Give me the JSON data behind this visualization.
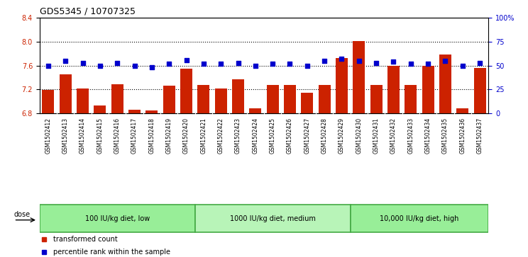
{
  "title": "GDS5345 / 10707325",
  "samples": [
    "GSM1502412",
    "GSM1502413",
    "GSM1502414",
    "GSM1502415",
    "GSM1502416",
    "GSM1502417",
    "GSM1502418",
    "GSM1502419",
    "GSM1502420",
    "GSM1502421",
    "GSM1502422",
    "GSM1502423",
    "GSM1502424",
    "GSM1502425",
    "GSM1502426",
    "GSM1502427",
    "GSM1502428",
    "GSM1502429",
    "GSM1502430",
    "GSM1502431",
    "GSM1502432",
    "GSM1502433",
    "GSM1502434",
    "GSM1502435",
    "GSM1502436",
    "GSM1502437"
  ],
  "red_values": [
    7.19,
    7.45,
    7.21,
    6.93,
    7.28,
    6.86,
    6.85,
    7.26,
    7.55,
    7.27,
    7.21,
    7.37,
    6.88,
    7.27,
    7.27,
    7.14,
    7.27,
    7.72,
    8.01,
    7.27,
    7.6,
    7.27,
    7.59,
    7.79,
    6.88,
    7.56
  ],
  "blue_values_pct": [
    50,
    55,
    53,
    50,
    53,
    50,
    48,
    52,
    56,
    52,
    52,
    53,
    50,
    52,
    52,
    50,
    55,
    57,
    55,
    53,
    54,
    52,
    52,
    55,
    50,
    53
  ],
  "groups": [
    {
      "label": "100 IU/kg diet, low",
      "start": 0,
      "end": 8
    },
    {
      "label": "1000 IU/kg diet, medium",
      "start": 9,
      "end": 17
    },
    {
      "label": "10,000 IU/kg diet, high",
      "start": 18,
      "end": 25
    }
  ],
  "group_colors": [
    "#98EE98",
    "#B8F4B8",
    "#98EE98"
  ],
  "group_border_color": "#44AA44",
  "ylim_left": [
    6.8,
    8.4
  ],
  "ylim_right": [
    0,
    100
  ],
  "right_ticks": [
    0,
    25,
    50,
    75,
    100
  ],
  "right_tick_labels": [
    "0",
    "25",
    "50",
    "75",
    "100%"
  ],
  "left_ticks": [
    6.8,
    7.2,
    7.6,
    8.0,
    8.4
  ],
  "bar_color": "#CC2200",
  "dot_color": "#0000CC",
  "tick_bg_color": "#C8C8C8",
  "plot_bg": "#FFFFFF",
  "dose_label": "dose",
  "legend_items": [
    {
      "label": "transformed count",
      "color": "#CC2200"
    },
    {
      "label": "percentile rank within the sample",
      "color": "#0000CC"
    }
  ]
}
